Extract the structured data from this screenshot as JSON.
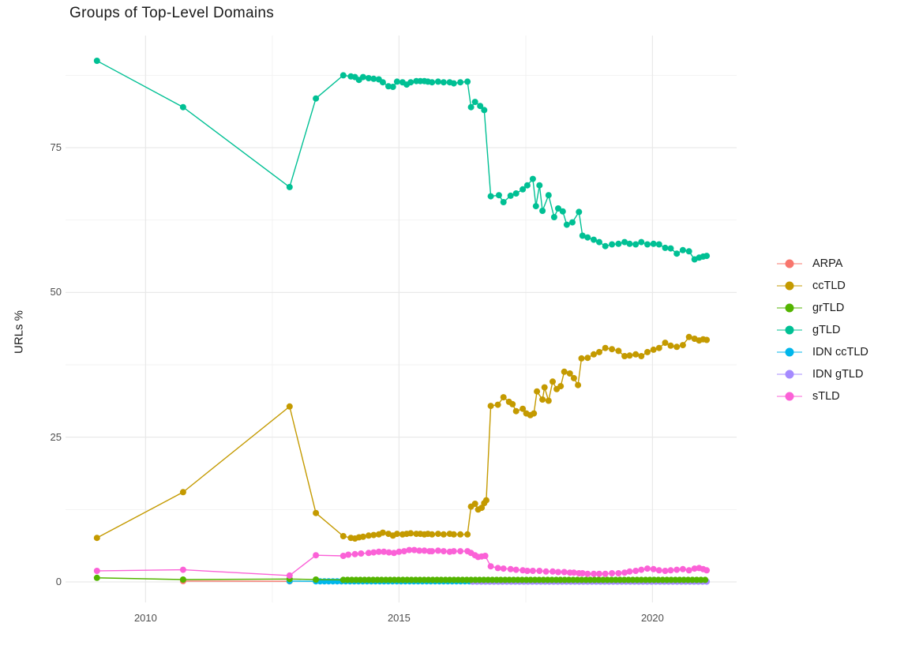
{
  "chart_data": {
    "type": "line",
    "title": "Groups of Top-Level Domains",
    "xlabel": "",
    "ylabel": "URLs %",
    "xlim": [
      2008.42,
      2021.66
    ],
    "ylim": [
      -3.55,
      94.37
    ],
    "x_ticks": [
      {
        "value": 2010,
        "label": "2010"
      },
      {
        "value": 2015,
        "label": "2015"
      },
      {
        "value": 2020,
        "label": "2020"
      }
    ],
    "x_minor_ticks": [
      2012.5,
      2017.5
    ],
    "y_ticks": [
      {
        "value": 0,
        "label": "0"
      },
      {
        "value": 25,
        "label": "25"
      },
      {
        "value": 50,
        "label": "50"
      },
      {
        "value": 75,
        "label": "75"
      }
    ],
    "y_minor_ticks": [
      12.5,
      37.5,
      62.5,
      87.5
    ],
    "grid": true,
    "legend_position": "right",
    "colors": {
      "major_grid": "#e9e9e9",
      "minor_grid": "#f2f2f2",
      "tick_text": "#4d4d4d",
      "title_text": "#1a1a1a"
    },
    "series": [
      {
        "name": "ARPA",
        "color": "#F8766D",
        "points": [
          [
            2010.74,
            0.15
          ],
          [
            2012.84,
            0.1
          ]
        ]
      },
      {
        "name": "IDN ccTLD",
        "color": "#00B6EB",
        "points": [
          [
            2012.84,
            0.15
          ]
        ],
        "run": {
          "from": 2013.36,
          "to": 2021.07,
          "step": 0.084,
          "y": 0.1
        }
      },
      {
        "name": "IDN gTLD",
        "color": "#A58AFF",
        "points": [],
        "run": {
          "from": 2016.45,
          "to": 2021.07,
          "step": 0.084,
          "y": 0.05
        }
      },
      {
        "name": "grTLD",
        "color": "#53B400",
        "points": [
          [
            2009.04,
            0.7
          ],
          [
            2010.74,
            0.4
          ],
          [
            2012.84,
            0.5
          ],
          [
            2013.36,
            0.4
          ]
        ],
        "run": {
          "from": 2013.9,
          "to": 2021.07,
          "step": 0.084,
          "y": 0.35
        }
      },
      {
        "name": "ccTLD",
        "color": "#C49A00",
        "points": [
          [
            2009.04,
            7.6
          ],
          [
            2010.74,
            15.5
          ],
          [
            2012.84,
            30.3
          ],
          [
            2013.36,
            11.9
          ],
          [
            2013.9,
            7.9
          ],
          [
            2014.05,
            7.6
          ],
          [
            2014.13,
            7.5
          ],
          [
            2014.21,
            7.7
          ],
          [
            2014.29,
            7.8
          ],
          [
            2014.4,
            8.0
          ],
          [
            2014.5,
            8.1
          ],
          [
            2014.6,
            8.2
          ],
          [
            2014.68,
            8.5
          ],
          [
            2014.79,
            8.3
          ],
          [
            2014.88,
            8.0
          ],
          [
            2014.96,
            8.3
          ],
          [
            2015.07,
            8.2
          ],
          [
            2015.15,
            8.3
          ],
          [
            2015.23,
            8.4
          ],
          [
            2015.34,
            8.3
          ],
          [
            2015.42,
            8.3
          ],
          [
            2015.5,
            8.2
          ],
          [
            2015.57,
            8.3
          ],
          [
            2015.65,
            8.2
          ],
          [
            2015.77,
            8.3
          ],
          [
            2015.88,
            8.2
          ],
          [
            2016.0,
            8.3
          ],
          [
            2016.08,
            8.2
          ],
          [
            2016.21,
            8.2
          ],
          [
            2016.35,
            8.2
          ],
          [
            2016.42,
            13.0
          ],
          [
            2016.5,
            13.5
          ],
          [
            2016.56,
            12.5
          ],
          [
            2016.63,
            12.8
          ],
          [
            2016.68,
            13.6
          ],
          [
            2016.72,
            14.1
          ],
          [
            2016.81,
            30.4
          ],
          [
            2016.95,
            30.6
          ],
          [
            2017.06,
            31.9
          ],
          [
            2017.17,
            31.1
          ],
          [
            2017.24,
            30.7
          ],
          [
            2017.31,
            29.5
          ],
          [
            2017.44,
            29.9
          ],
          [
            2017.51,
            29.1
          ],
          [
            2017.59,
            28.8
          ],
          [
            2017.66,
            29.1
          ],
          [
            2017.72,
            32.9
          ],
          [
            2017.83,
            31.5
          ],
          [
            2017.87,
            33.6
          ],
          [
            2017.95,
            31.3
          ],
          [
            2018.03,
            34.6
          ],
          [
            2018.11,
            33.3
          ],
          [
            2018.19,
            33.8
          ],
          [
            2018.26,
            36.3
          ],
          [
            2018.37,
            36.0
          ],
          [
            2018.45,
            35.2
          ],
          [
            2018.53,
            34.0
          ],
          [
            2018.6,
            38.6
          ],
          [
            2018.72,
            38.7
          ],
          [
            2018.84,
            39.3
          ],
          [
            2018.95,
            39.7
          ],
          [
            2019.07,
            40.4
          ],
          [
            2019.2,
            40.2
          ],
          [
            2019.33,
            39.9
          ],
          [
            2019.45,
            39.0
          ],
          [
            2019.55,
            39.1
          ],
          [
            2019.67,
            39.3
          ],
          [
            2019.78,
            39.0
          ],
          [
            2019.9,
            39.7
          ],
          [
            2020.02,
            40.1
          ],
          [
            2020.13,
            40.4
          ],
          [
            2020.25,
            41.3
          ],
          [
            2020.36,
            40.8
          ],
          [
            2020.48,
            40.6
          ],
          [
            2020.6,
            40.9
          ],
          [
            2020.72,
            42.3
          ],
          [
            2020.83,
            42.0
          ],
          [
            2020.92,
            41.7
          ],
          [
            2021.0,
            41.9
          ],
          [
            2021.07,
            41.8
          ]
        ]
      },
      {
        "name": "gTLD",
        "color": "#00C094",
        "points": [
          [
            2009.04,
            90.0
          ],
          [
            2010.74,
            82.0
          ],
          [
            2012.84,
            68.2
          ],
          [
            2013.36,
            83.5
          ],
          [
            2013.9,
            87.5
          ],
          [
            2014.05,
            87.3
          ],
          [
            2014.13,
            87.2
          ],
          [
            2014.21,
            86.7
          ],
          [
            2014.29,
            87.2
          ],
          [
            2014.4,
            87.0
          ],
          [
            2014.5,
            86.9
          ],
          [
            2014.6,
            86.8
          ],
          [
            2014.68,
            86.3
          ],
          [
            2014.79,
            85.6
          ],
          [
            2014.88,
            85.5
          ],
          [
            2014.96,
            86.4
          ],
          [
            2015.07,
            86.3
          ],
          [
            2015.15,
            85.9
          ],
          [
            2015.23,
            86.3
          ],
          [
            2015.34,
            86.5
          ],
          [
            2015.42,
            86.5
          ],
          [
            2015.5,
            86.5
          ],
          [
            2015.57,
            86.4
          ],
          [
            2015.65,
            86.3
          ],
          [
            2015.77,
            86.4
          ],
          [
            2015.88,
            86.3
          ],
          [
            2016.0,
            86.3
          ],
          [
            2016.08,
            86.1
          ],
          [
            2016.21,
            86.3
          ],
          [
            2016.35,
            86.4
          ],
          [
            2016.42,
            82.0
          ],
          [
            2016.5,
            82.9
          ],
          [
            2016.6,
            82.2
          ],
          [
            2016.68,
            81.5
          ],
          [
            2016.81,
            66.6
          ],
          [
            2016.97,
            66.8
          ],
          [
            2017.06,
            65.6
          ],
          [
            2017.2,
            66.7
          ],
          [
            2017.31,
            67.1
          ],
          [
            2017.44,
            67.8
          ],
          [
            2017.53,
            68.5
          ],
          [
            2017.64,
            69.6
          ],
          [
            2017.7,
            64.9
          ],
          [
            2017.77,
            68.5
          ],
          [
            2017.83,
            64.1
          ],
          [
            2017.95,
            66.8
          ],
          [
            2018.06,
            63.0
          ],
          [
            2018.14,
            64.5
          ],
          [
            2018.23,
            64.0
          ],
          [
            2018.31,
            61.7
          ],
          [
            2018.42,
            62.1
          ],
          [
            2018.55,
            63.9
          ],
          [
            2018.62,
            59.8
          ],
          [
            2018.72,
            59.5
          ],
          [
            2018.84,
            59.1
          ],
          [
            2018.95,
            58.7
          ],
          [
            2019.07,
            58.0
          ],
          [
            2019.2,
            58.3
          ],
          [
            2019.33,
            58.4
          ],
          [
            2019.45,
            58.7
          ],
          [
            2019.55,
            58.4
          ],
          [
            2019.67,
            58.3
          ],
          [
            2019.78,
            58.7
          ],
          [
            2019.9,
            58.3
          ],
          [
            2020.02,
            58.4
          ],
          [
            2020.13,
            58.3
          ],
          [
            2020.25,
            57.7
          ],
          [
            2020.36,
            57.6
          ],
          [
            2020.48,
            56.7
          ],
          [
            2020.6,
            57.3
          ],
          [
            2020.72,
            57.1
          ],
          [
            2020.83,
            55.7
          ],
          [
            2020.92,
            56.0
          ],
          [
            2021.0,
            56.2
          ],
          [
            2021.07,
            56.3
          ]
        ]
      },
      {
        "name": "sTLD",
        "color": "#FB61D7",
        "points": [
          [
            2009.04,
            1.9
          ],
          [
            2010.74,
            2.1
          ],
          [
            2012.84,
            1.1
          ],
          [
            2013.36,
            4.6
          ],
          [
            2013.9,
            4.5
          ],
          [
            2014.0,
            4.7
          ],
          [
            2014.13,
            4.8
          ],
          [
            2014.25,
            4.9
          ],
          [
            2014.4,
            5.0
          ],
          [
            2014.5,
            5.1
          ],
          [
            2014.6,
            5.2
          ],
          [
            2014.7,
            5.2
          ],
          [
            2014.8,
            5.1
          ],
          [
            2014.9,
            5.0
          ],
          [
            2015.0,
            5.2
          ],
          [
            2015.1,
            5.3
          ],
          [
            2015.2,
            5.5
          ],
          [
            2015.3,
            5.5
          ],
          [
            2015.4,
            5.4
          ],
          [
            2015.5,
            5.4
          ],
          [
            2015.6,
            5.3
          ],
          [
            2015.65,
            5.3
          ],
          [
            2015.77,
            5.4
          ],
          [
            2015.88,
            5.3
          ],
          [
            2016.0,
            5.2
          ],
          [
            2016.08,
            5.3
          ],
          [
            2016.21,
            5.3
          ],
          [
            2016.35,
            5.3
          ],
          [
            2016.42,
            5.0
          ],
          [
            2016.5,
            4.6
          ],
          [
            2016.56,
            4.3
          ],
          [
            2016.63,
            4.4
          ],
          [
            2016.7,
            4.5
          ],
          [
            2016.81,
            2.7
          ],
          [
            2016.95,
            2.4
          ],
          [
            2017.06,
            2.3
          ],
          [
            2017.2,
            2.2
          ],
          [
            2017.31,
            2.1
          ],
          [
            2017.44,
            2.0
          ],
          [
            2017.53,
            1.9
          ],
          [
            2017.64,
            1.9
          ],
          [
            2017.77,
            1.9
          ],
          [
            2017.9,
            1.8
          ],
          [
            2018.03,
            1.8
          ],
          [
            2018.14,
            1.7
          ],
          [
            2018.26,
            1.7
          ],
          [
            2018.37,
            1.6
          ],
          [
            2018.45,
            1.6
          ],
          [
            2018.55,
            1.5
          ],
          [
            2018.62,
            1.5
          ],
          [
            2018.72,
            1.4
          ],
          [
            2018.84,
            1.4
          ],
          [
            2018.95,
            1.4
          ],
          [
            2019.07,
            1.4
          ],
          [
            2019.2,
            1.5
          ],
          [
            2019.33,
            1.5
          ],
          [
            2019.45,
            1.6
          ],
          [
            2019.55,
            1.8
          ],
          [
            2019.67,
            1.9
          ],
          [
            2019.78,
            2.1
          ],
          [
            2019.9,
            2.3
          ],
          [
            2020.02,
            2.2
          ],
          [
            2020.13,
            2.0
          ],
          [
            2020.25,
            1.9
          ],
          [
            2020.36,
            2.0
          ],
          [
            2020.48,
            2.1
          ],
          [
            2020.6,
            2.2
          ],
          [
            2020.72,
            2.0
          ],
          [
            2020.83,
            2.3
          ],
          [
            2020.92,
            2.4
          ],
          [
            2021.0,
            2.2
          ],
          [
            2021.07,
            2.0
          ]
        ]
      }
    ],
    "legend_order": [
      "ARPA",
      "ccTLD",
      "grTLD",
      "gTLD",
      "IDN ccTLD",
      "IDN gTLD",
      "sTLD"
    ]
  }
}
